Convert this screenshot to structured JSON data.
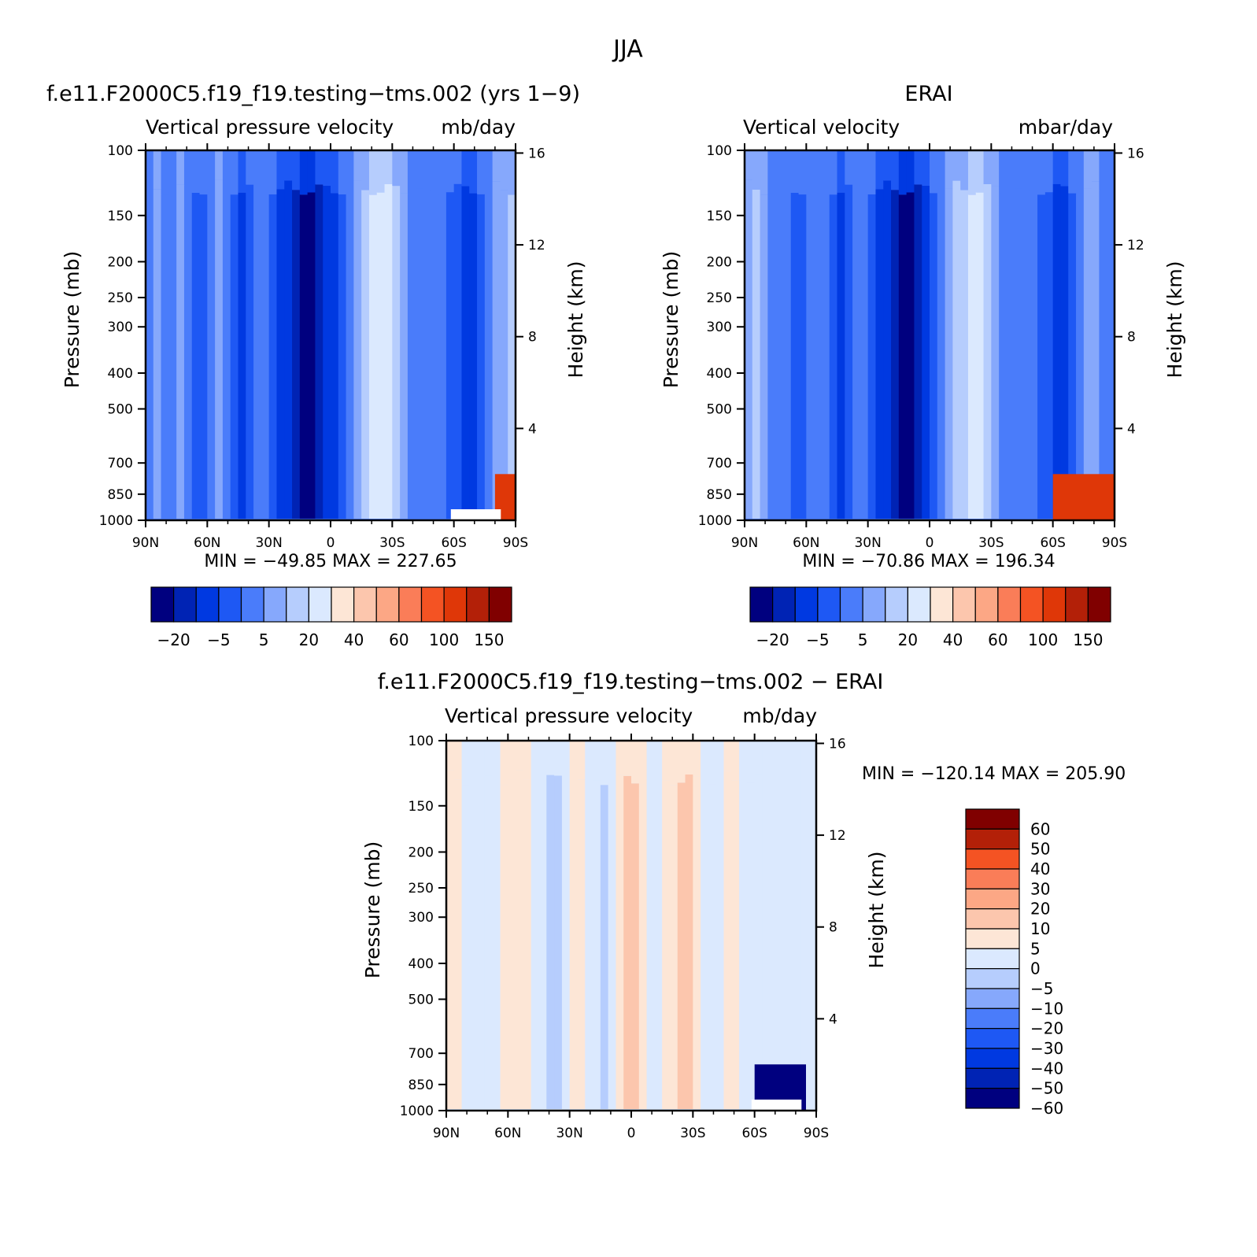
{
  "figure": {
    "season_title": "JJA",
    "panels": [
      {
        "id": "model",
        "title": "f.e11.F2000C5.f19_f19.testing−tms.002 (yrs 1−9)",
        "left_string": "Vertical pressure velocity",
        "right_string": "mb/day",
        "min_max": "MIN = −49.85   MAX = 227.65"
      },
      {
        "id": "obs",
        "title": "ERAI",
        "left_string": "Vertical velocity",
        "right_string": "mbar/day",
        "min_max": "MIN = −70.86   MAX = 196.34"
      },
      {
        "id": "diff",
        "title": "f.e11.F2000C5.f19_f19.testing−tms.002 − ERAI",
        "left_string": "Vertical pressure velocity",
        "right_string": "mb/day",
        "min_max": "MIN = −120.14   MAX = 205.90"
      }
    ],
    "colors": {
      "main": [
        "#00007f",
        "#0023b4",
        "#0039e1",
        "#1e58f4",
        "#4a7cfa",
        "#86a8fc",
        "#b6cdfd",
        "#dbe9fe",
        "#fde6d6",
        "#fcc6ad",
        "#fca785",
        "#fa7d58",
        "#f45323",
        "#df3708",
        "#b32008",
        "#800000"
      ],
      "diff": [
        "#00007f",
        "#0023b4",
        "#0039e1",
        "#1e58f4",
        "#4a7cfa",
        "#86a8fc",
        "#b6cdfd",
        "#dbe9fe",
        "#fde6d6",
        "#fcc6ad",
        "#fca785",
        "#fa7d58",
        "#f45323",
        "#b32008",
        "#800000"
      ]
    }
  },
  "chart_data": [
    {
      "type": "heatmap",
      "title": "f.e11.F2000C5.f19_f19.testing−tms.002 (yrs 1−9)",
      "x_ticks": [
        "90N",
        "60N",
        "30N",
        "0",
        "30S",
        "60S",
        "90S"
      ],
      "y_ticks": [
        "100",
        "150",
        "200",
        "250",
        "300",
        "400",
        "500",
        "700",
        "850",
        "1000"
      ],
      "y2_ticks": [
        "16",
        "12",
        "8",
        "4"
      ],
      "ylabel": "Pressure (mb)",
      "y2label": "Height (km)",
      "units": "mb/day",
      "min": -49.85,
      "max": 227.65,
      "colorbar_labels": [
        "−20",
        "−5",
        "5",
        "20",
        "40",
        "60",
        "100",
        "150"
      ],
      "zonal_profile": [
        4,
        5,
        4,
        4,
        5,
        4,
        3,
        3,
        4,
        5,
        4,
        3,
        2,
        3,
        4,
        4,
        3,
        2,
        2,
        1,
        0,
        0,
        1,
        2,
        2,
        3,
        4,
        5,
        6,
        7,
        7,
        7,
        6,
        5,
        4,
        4,
        4,
        4,
        4,
        3,
        3,
        2,
        2,
        3,
        4,
        5,
        5,
        6
      ],
      "sfc_extreme": {
        "lat_from": 80,
        "lat_to": 90,
        "value": 150
      }
    },
    {
      "type": "heatmap",
      "title": "ERAI",
      "x_ticks": [
        "90N",
        "60N",
        "30N",
        "0",
        "30S",
        "60S",
        "90S"
      ],
      "y_ticks": [
        "100",
        "150",
        "200",
        "250",
        "300",
        "400",
        "500",
        "700",
        "850",
        "1000"
      ],
      "y2_ticks": [
        "16",
        "12",
        "8",
        "4"
      ],
      "ylabel": "Pressure (mb)",
      "y2label": "Height (km)",
      "units": "mbar/day",
      "min": -70.86,
      "max": 196.34,
      "colorbar_labels": [
        "−20",
        "−5",
        "5",
        "20",
        "40",
        "60",
        "100",
        "150"
      ],
      "zonal_profile": [
        5,
        6,
        5,
        4,
        4,
        4,
        3,
        3,
        4,
        4,
        4,
        3,
        2,
        3,
        4,
        4,
        3,
        2,
        2,
        1,
        0,
        0,
        1,
        2,
        3,
        4,
        5,
        6,
        6,
        7,
        7,
        6,
        5,
        4,
        4,
        4,
        4,
        4,
        3,
        3,
        2,
        2,
        3,
        4,
        5,
        5,
        4,
        4
      ],
      "sfc_extreme": {
        "lat_from": 60,
        "lat_to": 90,
        "value": 150
      }
    },
    {
      "type": "heatmap",
      "title": "f.e11.F2000C5.f19_f19.testing−tms.002 − ERAI",
      "x_ticks": [
        "90N",
        "60N",
        "30N",
        "0",
        "30S",
        "60S",
        "90S"
      ],
      "y_ticks": [
        "100",
        "150",
        "200",
        "250",
        "300",
        "400",
        "500",
        "700",
        "850",
        "1000"
      ],
      "y2_ticks": [
        "16",
        "12",
        "8",
        "4"
      ],
      "ylabel": "Pressure (mb)",
      "y2label": "Height (km)",
      "units": "mb/day",
      "min": -120.14,
      "max": 205.9,
      "colorbar_labels": [
        "60",
        "50",
        "40",
        "30",
        "20",
        "10",
        "5",
        "0",
        "−5",
        "−10",
        "−20",
        "−30",
        "−40",
        "−50",
        "−60"
      ],
      "zonal_profile": [
        8,
        8,
        7,
        7,
        7,
        7,
        7,
        8,
        8,
        8,
        8,
        7,
        7,
        6,
        6,
        7,
        8,
        8,
        7,
        7,
        6,
        7,
        8,
        9,
        9,
        8,
        7,
        7,
        8,
        8,
        9,
        9,
        8,
        7,
        7,
        7,
        8,
        8,
        7,
        7,
        7,
        7,
        7,
        7,
        7,
        7,
        7,
        7
      ],
      "sfc_extreme": {
        "lat_from": 60,
        "lat_to": 85,
        "value": -60
      }
    }
  ]
}
